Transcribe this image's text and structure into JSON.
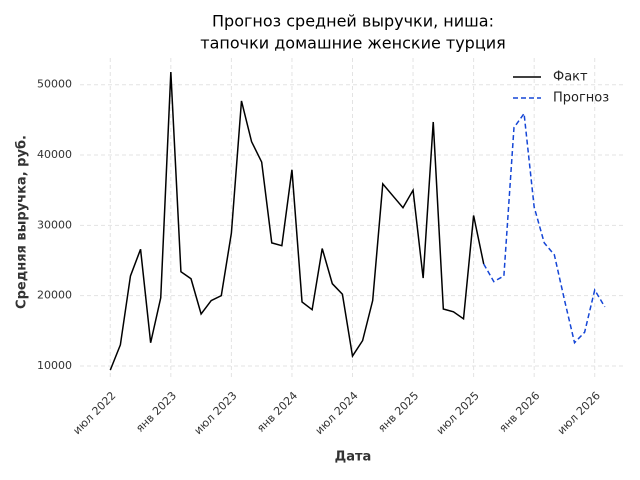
{
  "chart_data": {
    "type": "line",
    "title": [
      "Прогноз средней выручки, ниша:",
      "тапочки домашние женские турция"
    ],
    "x_label": "Дата",
    "y_label": "Средняя выручка, руб.",
    "x": [
      "2022-07",
      "2022-08",
      "2022-09",
      "2022-10",
      "2022-11",
      "2022-12",
      "2023-01",
      "2023-02",
      "2023-03",
      "2023-04",
      "2023-05",
      "2023-06",
      "2023-07",
      "2023-08",
      "2023-09",
      "2023-10",
      "2023-11",
      "2023-12",
      "2024-01",
      "2024-02",
      "2024-03",
      "2024-04",
      "2024-05",
      "2024-06",
      "2024-07",
      "2024-08",
      "2024-09",
      "2024-10",
      "2024-11",
      "2024-12",
      "2025-01",
      "2025-02",
      "2025-03",
      "2025-04",
      "2025-05",
      "2025-06",
      "2025-07",
      "2025-08",
      "2025-09",
      "2025-10",
      "2025-11",
      "2025-12",
      "2026-01",
      "2026-02",
      "2026-03",
      "2026-04",
      "2026-05",
      "2026-06",
      "2026-07",
      "2026-08"
    ],
    "series": [
      {
        "name": "Факт",
        "color": "#000000",
        "dash": false,
        "values": [
          9400,
          13000,
          22800,
          26600,
          13300,
          19700,
          51800,
          23400,
          22400,
          17400,
          19300,
          20000,
          28900,
          47700,
          41900,
          39000,
          27500,
          27100,
          37900,
          19100,
          18000,
          26700,
          21700,
          20200,
          11400,
          13600,
          19300,
          35900,
          34200,
          32500,
          35000,
          22500,
          44700,
          18100,
          17700,
          16700,
          31400,
          24500,
          null,
          null,
          null,
          null,
          null,
          null,
          null,
          null,
          null,
          null,
          null,
          null
        ]
      },
      {
        "name": "Прогноз",
        "color": "#1546d6",
        "dash": true,
        "values": [
          null,
          null,
          null,
          null,
          null,
          null,
          null,
          null,
          null,
          null,
          null,
          null,
          null,
          null,
          null,
          null,
          null,
          null,
          null,
          null,
          null,
          null,
          null,
          null,
          null,
          null,
          null,
          null,
          null,
          null,
          null,
          null,
          null,
          null,
          null,
          null,
          null,
          24500,
          22000,
          22800,
          43900,
          45900,
          32600,
          27500,
          25800,
          19400,
          13300,
          14800,
          20800,
          18400
        ]
      }
    ],
    "xlim": [
      "2022-04",
      "2026-10"
    ],
    "xticks": [
      {
        "value": "2022-07",
        "label": "июл 2022"
      },
      {
        "value": "2023-01",
        "label": "янв 2023"
      },
      {
        "value": "2023-07",
        "label": "июл 2023"
      },
      {
        "value": "2024-01",
        "label": "янв 2024"
      },
      {
        "value": "2024-07",
        "label": "июл 2024"
      },
      {
        "value": "2025-01",
        "label": "янв 2025"
      },
      {
        "value": "2025-07",
        "label": "июл 2025"
      },
      {
        "value": "2026-01",
        "label": "янв 2026"
      },
      {
        "value": "2026-07",
        "label": "июл 2026"
      }
    ],
    "ylim": [
      8000,
      53800
    ],
    "yticks": [
      10000,
      20000,
      30000,
      40000,
      50000
    ],
    "grid": true,
    "legend": "upper right"
  }
}
